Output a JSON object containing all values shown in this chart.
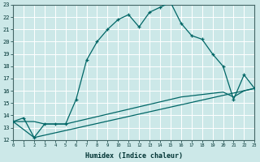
{
  "xlabel": "Humidex (Indice chaleur)",
  "bg_color": "#cce8e8",
  "grid_color": "#aacccc",
  "line_color": "#006666",
  "xmin": 0,
  "xmax": 23,
  "ymin": 12,
  "ymax": 23,
  "line1_x": [
    0,
    1,
    2,
    3,
    4,
    5,
    6,
    7,
    8,
    9,
    10,
    11,
    12,
    13,
    14,
    15,
    16,
    17,
    18,
    19,
    20,
    21,
    22,
    23
  ],
  "line1_y": [
    13.5,
    13.8,
    12.2,
    13.3,
    13.3,
    13.3,
    15.3,
    18.5,
    20.0,
    21.0,
    21.8,
    22.2,
    21.2,
    22.4,
    22.8,
    23.2,
    21.5,
    20.5,
    20.2,
    19.0,
    18.0,
    15.3,
    17.3,
    16.2
  ],
  "line2_x": [
    0,
    2,
    3,
    4,
    5,
    6,
    7,
    8,
    9,
    10,
    11,
    12,
    13,
    14,
    15,
    16,
    17,
    18,
    19,
    20,
    21,
    22,
    23
  ],
  "line2_y": [
    13.5,
    13.5,
    13.3,
    13.3,
    13.3,
    13.5,
    13.7,
    13.9,
    14.1,
    14.3,
    14.5,
    14.7,
    14.9,
    15.1,
    15.3,
    15.5,
    15.6,
    15.7,
    15.8,
    15.9,
    15.5,
    16.0,
    16.2
  ],
  "line3_x": [
    0,
    2,
    23
  ],
  "line3_y": [
    13.5,
    12.2,
    16.2
  ]
}
